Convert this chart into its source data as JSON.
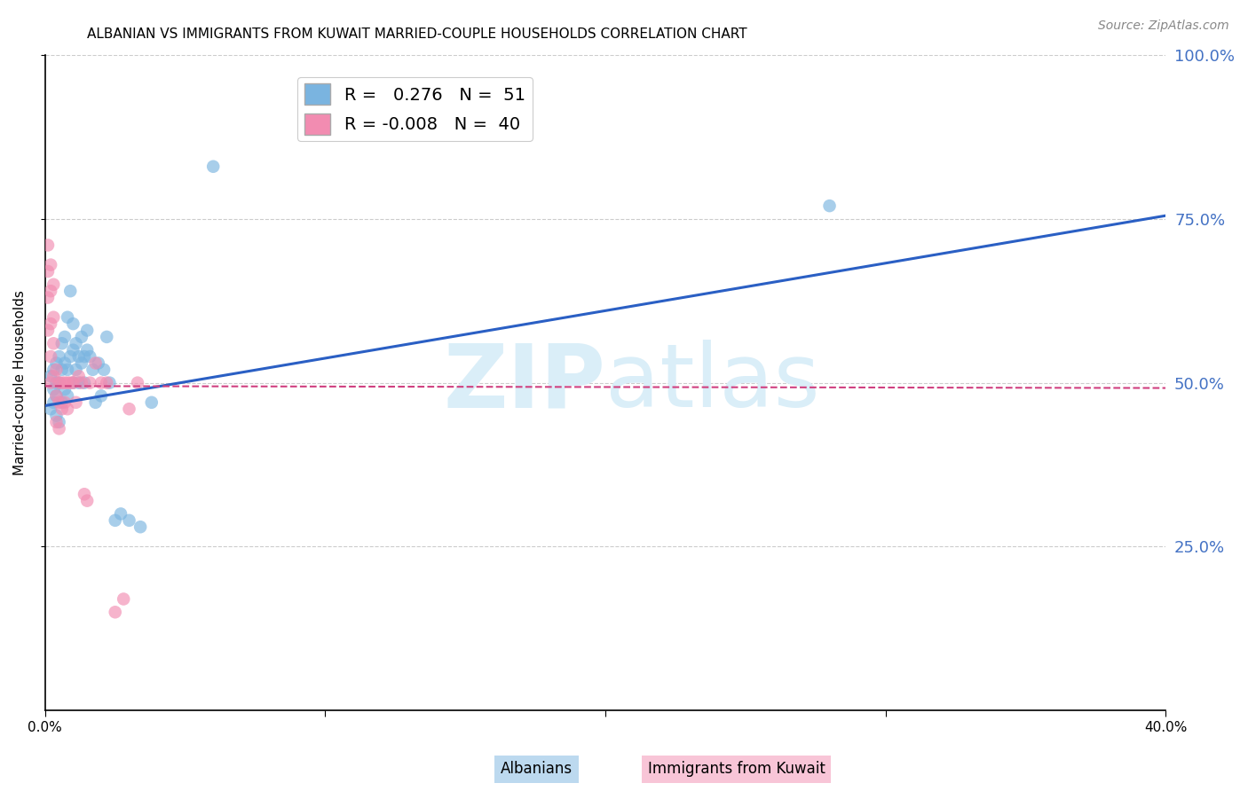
{
  "title": "ALBANIAN VS IMMIGRANTS FROM KUWAIT MARRIED-COUPLE HOUSEHOLDS CORRELATION CHART",
  "source": "Source: ZipAtlas.com",
  "ylabel": "Married-couple Households",
  "xlim": [
    0.0,
    0.4
  ],
  "ylim": [
    0.0,
    1.0
  ],
  "xtick_labels": [
    "0.0%",
    "",
    "",
    "",
    "40.0%"
  ],
  "xtick_vals": [
    0.0,
    0.1,
    0.2,
    0.3,
    0.4
  ],
  "ytick_labels": [
    "25.0%",
    "50.0%",
    "75.0%",
    "100.0%"
  ],
  "ytick_vals": [
    0.25,
    0.5,
    0.75,
    1.0
  ],
  "albanians_x": [
    0.002,
    0.002,
    0.003,
    0.003,
    0.003,
    0.004,
    0.004,
    0.004,
    0.004,
    0.005,
    0.005,
    0.005,
    0.006,
    0.006,
    0.006,
    0.007,
    0.007,
    0.007,
    0.008,
    0.008,
    0.008,
    0.009,
    0.009,
    0.01,
    0.01,
    0.01,
    0.011,
    0.011,
    0.012,
    0.012,
    0.013,
    0.013,
    0.014,
    0.014,
    0.015,
    0.015,
    0.016,
    0.017,
    0.018,
    0.019,
    0.02,
    0.021,
    0.022,
    0.023,
    0.025,
    0.027,
    0.03,
    0.034,
    0.038,
    0.28,
    0.06
  ],
  "albanians_y": [
    0.46,
    0.51,
    0.47,
    0.52,
    0.49,
    0.45,
    0.5,
    0.53,
    0.48,
    0.44,
    0.5,
    0.54,
    0.47,
    0.52,
    0.56,
    0.49,
    0.53,
    0.57,
    0.48,
    0.52,
    0.6,
    0.64,
    0.54,
    0.5,
    0.55,
    0.59,
    0.52,
    0.56,
    0.5,
    0.54,
    0.53,
    0.57,
    0.5,
    0.54,
    0.55,
    0.58,
    0.54,
    0.52,
    0.47,
    0.53,
    0.48,
    0.52,
    0.57,
    0.5,
    0.29,
    0.3,
    0.29,
    0.28,
    0.47,
    0.77,
    0.83
  ],
  "kuwait_x": [
    0.001,
    0.001,
    0.001,
    0.001,
    0.002,
    0.002,
    0.002,
    0.002,
    0.002,
    0.003,
    0.003,
    0.003,
    0.003,
    0.004,
    0.004,
    0.004,
    0.005,
    0.005,
    0.005,
    0.006,
    0.006,
    0.007,
    0.007,
    0.008,
    0.008,
    0.009,
    0.01,
    0.011,
    0.012,
    0.013,
    0.014,
    0.015,
    0.016,
    0.018,
    0.02,
    0.022,
    0.025,
    0.028,
    0.03,
    0.033
  ],
  "kuwait_y": [
    0.71,
    0.67,
    0.63,
    0.58,
    0.68,
    0.64,
    0.59,
    0.54,
    0.5,
    0.65,
    0.6,
    0.56,
    0.51,
    0.52,
    0.48,
    0.44,
    0.5,
    0.47,
    0.43,
    0.5,
    0.46,
    0.5,
    0.47,
    0.5,
    0.46,
    0.5,
    0.5,
    0.47,
    0.51,
    0.5,
    0.33,
    0.32,
    0.5,
    0.53,
    0.5,
    0.5,
    0.15,
    0.17,
    0.46,
    0.5
  ],
  "blue_line_x": [
    0.0,
    0.4
  ],
  "blue_line_y": [
    0.465,
    0.755
  ],
  "pink_line_x": [
    0.0,
    0.4
  ],
  "pink_line_y": [
    0.495,
    0.492
  ],
  "dot_color_albanian": "#7ab4e0",
  "dot_color_kuwait": "#f28cb1",
  "line_color_albanian": "#2a5fc4",
  "line_color_kuwait": "#d04080",
  "background_color": "#ffffff",
  "grid_color": "#cccccc",
  "title_fontsize": 11,
  "axis_label_fontsize": 11,
  "tick_fontsize": 11,
  "right_tick_color": "#4472c4",
  "watermark_zip": "ZIP",
  "watermark_atlas": "atlas",
  "watermark_color": "#daeef8"
}
